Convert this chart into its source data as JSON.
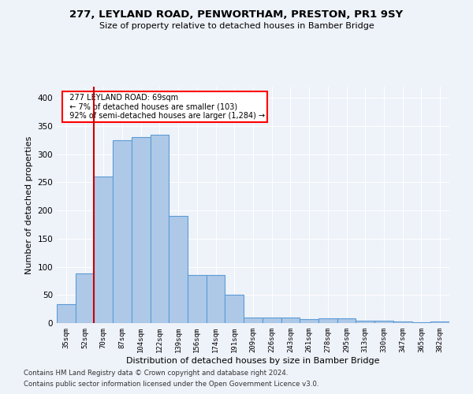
{
  "title": "277, LEYLAND ROAD, PENWORTHAM, PRESTON, PR1 9SY",
  "subtitle": "Size of property relative to detached houses in Bamber Bridge",
  "xlabel": "Distribution of detached houses by size in Bamber Bridge",
  "ylabel": "Number of detached properties",
  "footnote1": "Contains HM Land Registry data © Crown copyright and database right 2024.",
  "footnote2": "Contains public sector information licensed under the Open Government Licence v3.0.",
  "annotation_title": "277 LEYLAND ROAD: 69sqm",
  "annotation_line1": "← 7% of detached houses are smaller (103)",
  "annotation_line2": "92% of semi-detached houses are larger (1,284) →",
  "bar_color": "#aec9e8",
  "bar_edge_color": "#5b9bd5",
  "marker_color": "#cc0000",
  "categories": [
    "35sqm",
    "52sqm",
    "70sqm",
    "87sqm",
    "104sqm",
    "122sqm",
    "139sqm",
    "156sqm",
    "174sqm",
    "191sqm",
    "209sqm",
    "226sqm",
    "243sqm",
    "261sqm",
    "278sqm",
    "295sqm",
    "313sqm",
    "330sqm",
    "347sqm",
    "365sqm",
    "382sqm"
  ],
  "values": [
    33,
    88,
    260,
    325,
    330,
    335,
    190,
    85,
    85,
    50,
    10,
    10,
    10,
    7,
    8,
    8,
    4,
    4,
    3,
    2,
    3
  ],
  "ylim": [
    0,
    420
  ],
  "yticks": [
    0,
    50,
    100,
    150,
    200,
    250,
    300,
    350,
    400
  ],
  "marker_bin_index": 1,
  "bg_color": "#eef2f9",
  "grid_color": "#ffffff"
}
